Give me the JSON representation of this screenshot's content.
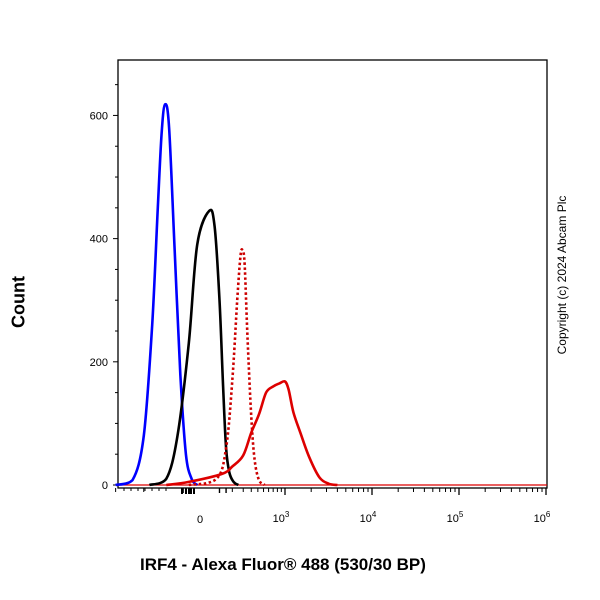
{
  "chart_data": {
    "type": "line",
    "xlabel": "IRF4 - Alexa Fluor® 488 (530/30 BP)",
    "ylabel": "Count",
    "x_scale": "biexponential (linear near 0, log above)",
    "x_ticks": [
      {
        "value": 0,
        "label": "0",
        "sup": ""
      },
      {
        "value": 1000,
        "label": "10",
        "sup": "3"
      },
      {
        "value": 10000,
        "label": "10",
        "sup": "4"
      },
      {
        "value": 100000,
        "label": "10",
        "sup": "5"
      },
      {
        "value": 1000000,
        "label": "10",
        "sup": "6"
      }
    ],
    "y_ticks": [
      0,
      200,
      400,
      600
    ],
    "ylim": [
      0,
      690
    ],
    "grid": false,
    "series": [
      {
        "color": "#0000ff",
        "style": "solid",
        "points": [
          [
            -150,
            0
          ],
          [
            -120,
            8
          ],
          [
            -100,
            80
          ],
          [
            -85,
            260
          ],
          [
            -75,
            450
          ],
          [
            -68,
            575
          ],
          [
            -62,
            618
          ],
          [
            -55,
            580
          ],
          [
            -45,
            380
          ],
          [
            -35,
            180
          ],
          [
            -25,
            50
          ],
          [
            -15,
            10
          ],
          [
            -5,
            0
          ]
        ]
      },
      {
        "color": "#000000",
        "style": "solid",
        "points": [
          [
            -90,
            0
          ],
          [
            -60,
            10
          ],
          [
            -40,
            80
          ],
          [
            -20,
            230
          ],
          [
            -5,
            390
          ],
          [
            5,
            445
          ],
          [
            15,
            420
          ],
          [
            30,
            300
          ],
          [
            45,
            160
          ],
          [
            60,
            60
          ],
          [
            80,
            20
          ],
          [
            110,
            5
          ],
          [
            150,
            0
          ]
        ]
      },
      {
        "color": "#cc0000",
        "style": "dotted",
        "points": [
          [
            -20,
            0
          ],
          [
            20,
            10
          ],
          [
            60,
            60
          ],
          [
            100,
            170
          ],
          [
            140,
            300
          ],
          [
            170,
            370
          ],
          [
            190,
            382
          ],
          [
            215,
            360
          ],
          [
            250,
            240
          ],
          [
            300,
            110
          ],
          [
            350,
            40
          ],
          [
            420,
            8
          ],
          [
            520,
            0
          ]
        ]
      },
      {
        "color": "#dd0000",
        "style": "solid",
        "points": [
          [
            -60,
            0
          ],
          [
            -20,
            5
          ],
          [
            40,
            18
          ],
          [
            100,
            30
          ],
          [
            200,
            48
          ],
          [
            300,
            85
          ],
          [
            420,
            115
          ],
          [
            550,
            150
          ],
          [
            700,
            160
          ],
          [
            850,
            165
          ],
          [
            1000,
            168
          ],
          [
            1100,
            155
          ],
          [
            1250,
            118
          ],
          [
            1500,
            85
          ],
          [
            1900,
            45
          ],
          [
            2500,
            12
          ],
          [
            3200,
            2
          ],
          [
            4000,
            0
          ]
        ]
      }
    ]
  },
  "copyright": "Copyright (c) 2024 Abcam Plc"
}
